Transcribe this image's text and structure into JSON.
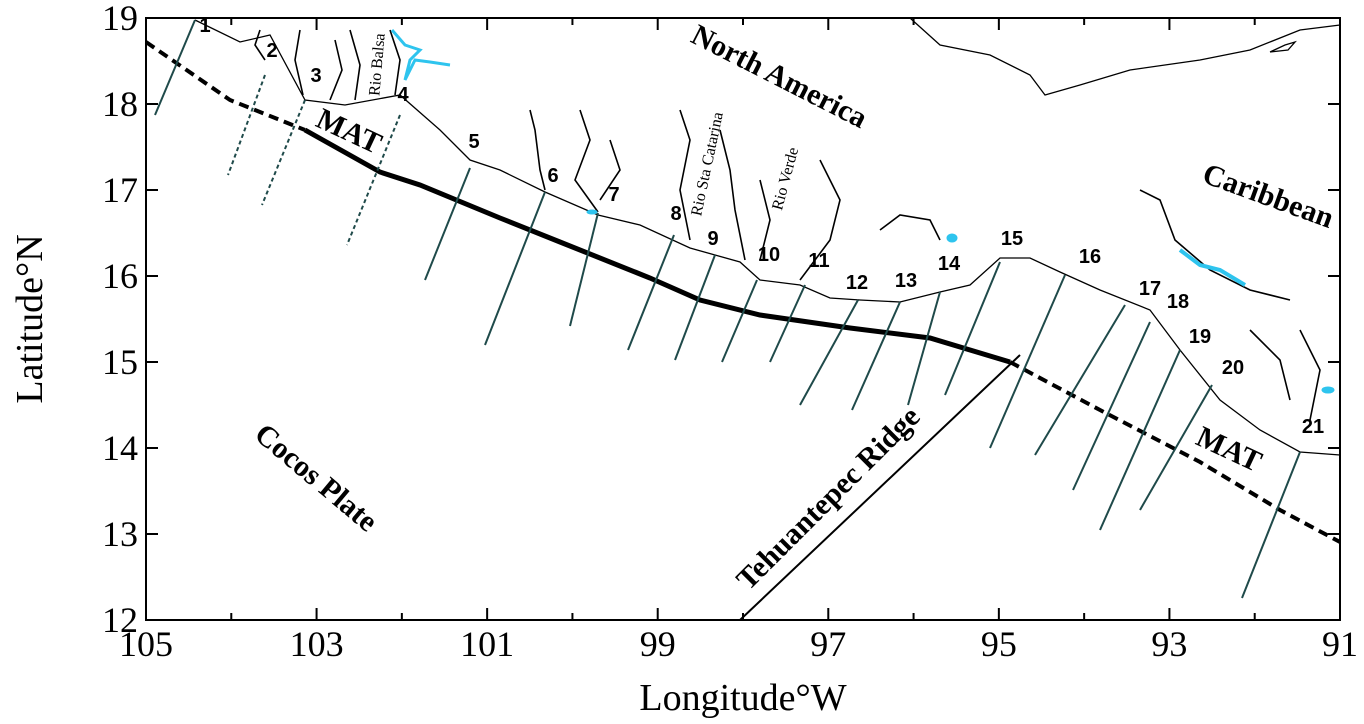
{
  "map": {
    "x_label": "Longitude°W",
    "y_label": "Latitude°N",
    "xlim": [
      105,
      91
    ],
    "ylim": [
      12,
      19
    ],
    "xticks": [
      105,
      103,
      101,
      99,
      97,
      95,
      93,
      91
    ],
    "yticks": [
      12,
      13,
      14,
      15,
      16,
      17,
      18,
      19
    ],
    "region_labels": [
      "North America",
      "Caribbean",
      "Cocos Plate",
      "MAT",
      "MAT",
      "Tehuantepec Ridge"
    ],
    "river_labels": [
      "Rio Balsa",
      "Rio Sta Catarina",
      "Rio Verde"
    ],
    "profiles": [
      1,
      2,
      3,
      4,
      5,
      6,
      7,
      8,
      9,
      10,
      11,
      12,
      13,
      14,
      15,
      16,
      17,
      18,
      19,
      20,
      21
    ]
  }
}
